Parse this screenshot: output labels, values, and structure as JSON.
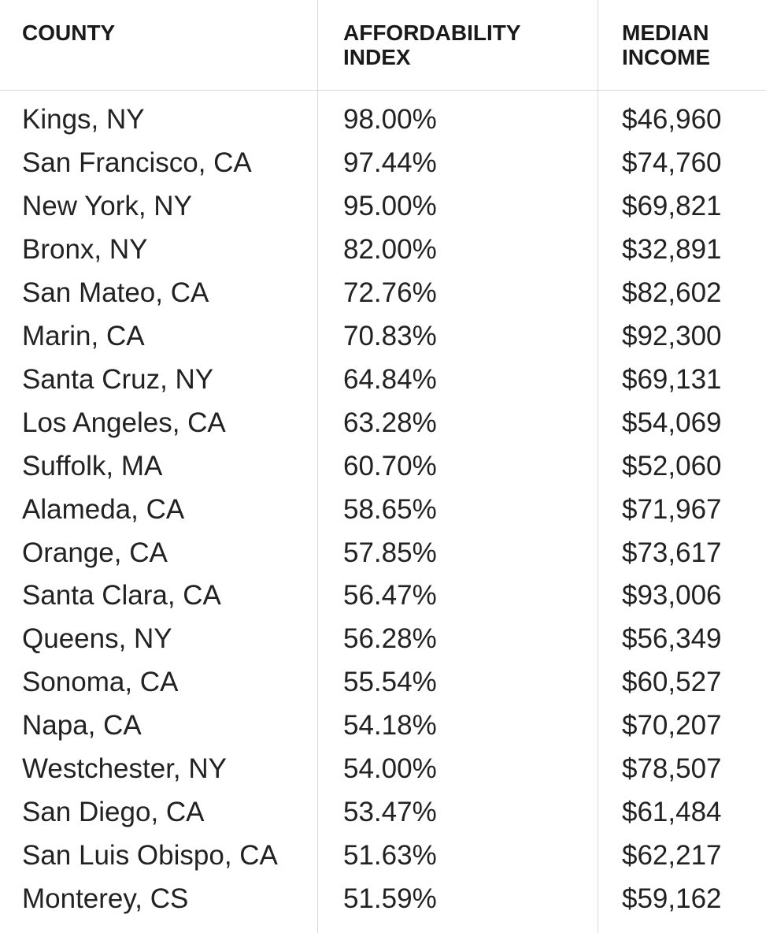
{
  "table": {
    "headers": [
      "COUNTY",
      "AFFORDABILITY INDEX",
      "MEDIAN INCOME"
    ],
    "rows": [
      [
        "Kings, NY",
        "98.00%",
        "$46,960"
      ],
      [
        "San Francisco, CA",
        "97.44%",
        "$74,760"
      ],
      [
        "New York, NY",
        "95.00%",
        "$69,821"
      ],
      [
        "Bronx, NY",
        "82.00%",
        "$32,891"
      ],
      [
        "San Mateo, CA",
        "72.76%",
        "$82,602"
      ],
      [
        "Marin, CA",
        "70.83%",
        "$92,300"
      ],
      [
        "Santa Cruz, NY",
        "64.84%",
        "$69,131"
      ],
      [
        "Los Angeles, CA",
        "63.28%",
        "$54,069"
      ],
      [
        "Suffolk, MA",
        "60.70%",
        "$52,060"
      ],
      [
        "Alameda, CA",
        "58.65%",
        "$71,967"
      ],
      [
        "Orange, CA",
        "57.85%",
        "$73,617"
      ],
      [
        "Santa Clara, CA",
        "56.47%",
        "$93,006"
      ],
      [
        "Queens, NY",
        "56.28%",
        "$56,349"
      ],
      [
        "Sonoma, CA",
        "55.54%",
        "$60,527"
      ],
      [
        "Napa, CA",
        "54.18%",
        "$70,207"
      ],
      [
        "Westchester, NY",
        "54.00%",
        "$78,507"
      ],
      [
        "San Diego, CA",
        "53.47%",
        "$61,484"
      ],
      [
        "San Luis Obispo, CA",
        "51.63%",
        "$62,217"
      ],
      [
        "Monterey, CS",
        "51.59%",
        "$59,162"
      ]
    ]
  }
}
